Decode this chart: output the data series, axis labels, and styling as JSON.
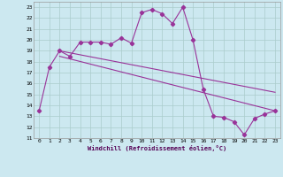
{
  "xlabel": "Windchill (Refroidissement éolien,°C)",
  "bg_color": "#cce8f0",
  "grid_color": "#aacccc",
  "line_color": "#993399",
  "xlim": [
    -0.5,
    23.5
  ],
  "ylim": [
    11,
    23.5
  ],
  "xticks": [
    0,
    1,
    2,
    3,
    4,
    5,
    6,
    7,
    8,
    9,
    10,
    11,
    12,
    13,
    14,
    15,
    16,
    17,
    18,
    19,
    20,
    21,
    22,
    23
  ],
  "yticks": [
    11,
    12,
    13,
    14,
    15,
    16,
    17,
    18,
    19,
    20,
    21,
    22,
    23
  ],
  "series1_x": [
    0,
    1,
    2,
    3,
    4,
    5,
    6,
    7,
    8,
    9,
    10,
    11,
    12,
    13,
    14,
    15,
    16,
    17,
    18,
    19,
    20,
    21,
    22,
    23
  ],
  "series1_y": [
    13.5,
    17.5,
    19.0,
    18.5,
    19.8,
    19.8,
    19.8,
    19.6,
    20.2,
    19.7,
    22.5,
    22.8,
    22.4,
    21.5,
    23.0,
    20.0,
    15.5,
    13.0,
    12.9,
    12.5,
    11.3,
    12.8,
    13.2,
    13.5
  ],
  "series2_x": [
    2,
    23
  ],
  "series2_y": [
    19.0,
    15.2
  ],
  "series3_x": [
    2,
    23
  ],
  "series3_y": [
    18.5,
    13.5
  ]
}
